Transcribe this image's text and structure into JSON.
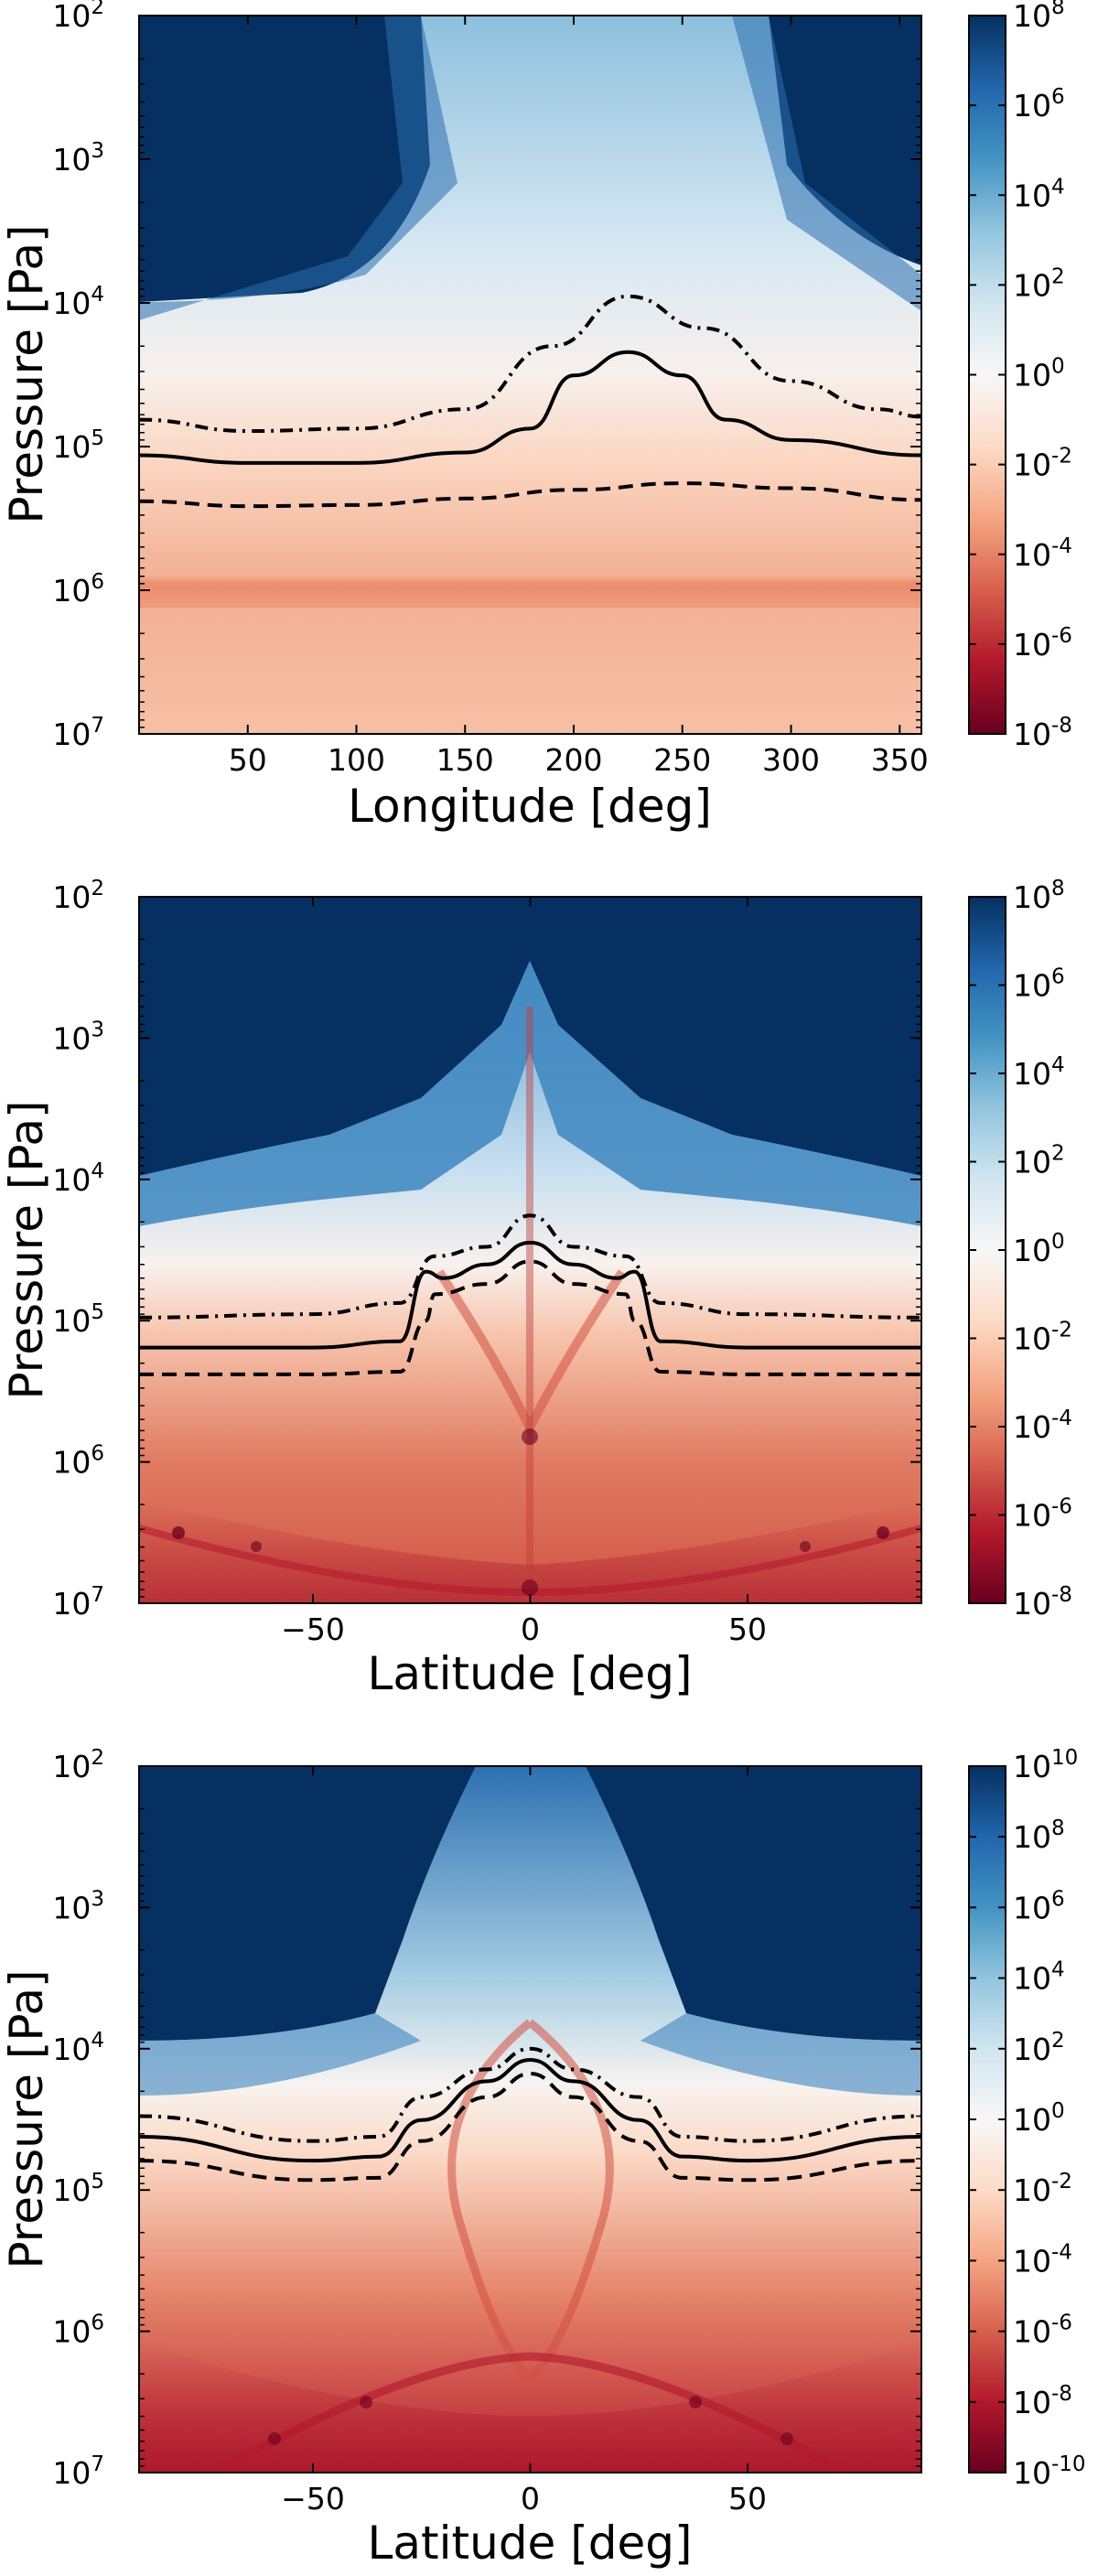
{
  "chart_data": [
    {
      "type": "heatmap",
      "panel": "top",
      "xlabel": "Longitude [deg]",
      "ylabel": "Pressure [Pa]",
      "xlim": [
        0,
        360
      ],
      "xticks": [
        50,
        100,
        150,
        200,
        250,
        300,
        350
      ],
      "ylim": [
        100,
        10000000
      ],
      "yscale": "log",
      "yinverted": true,
      "yticks": [
        {
          "base": "10",
          "exp": "2"
        },
        {
          "base": "10",
          "exp": "3"
        },
        {
          "base": "10",
          "exp": "4"
        },
        {
          "base": "10",
          "exp": "5"
        },
        {
          "base": "10",
          "exp": "6"
        },
        {
          "base": "10",
          "exp": "7"
        }
      ],
      "colorbar": {
        "scale": "log",
        "colormap": "RdBu",
        "range": [
          1e-08,
          100000000.0
        ],
        "ticks": [
          {
            "base": "10",
            "exp": "8"
          },
          {
            "base": "10",
            "exp": "6"
          },
          {
            "base": "10",
            "exp": "4"
          },
          {
            "base": "10",
            "exp": "2"
          },
          {
            "base": "10",
            "exp": "0"
          },
          {
            "base": "10",
            "exp": "-2"
          },
          {
            "base": "10",
            "exp": "-4"
          },
          {
            "base": "10",
            "exp": "-6"
          },
          {
            "base": "10",
            "exp": "-8"
          }
        ]
      },
      "contours": [
        {
          "style": "dashdot",
          "points": [
            [
              0,
              65000
            ],
            [
              50,
              78000
            ],
            [
              100,
              75000
            ],
            [
              150,
              55000
            ],
            [
              190,
              20000
            ],
            [
              225,
              9000
            ],
            [
              260,
              15000
            ],
            [
              300,
              35000
            ],
            [
              340,
              55000
            ],
            [
              360,
              62000
            ]
          ]
        },
        {
          "style": "solid",
          "points": [
            [
              0,
              115000
            ],
            [
              50,
              130000
            ],
            [
              100,
              130000
            ],
            [
              150,
              110000
            ],
            [
              180,
              75000
            ],
            [
              200,
              32000
            ],
            [
              225,
              22000
            ],
            [
              250,
              32000
            ],
            [
              270,
              65000
            ],
            [
              300,
              90000
            ],
            [
              360,
              115000
            ]
          ]
        },
        {
          "style": "dashed",
          "points": [
            [
              0,
              240000
            ],
            [
              50,
              260000
            ],
            [
              100,
              255000
            ],
            [
              150,
              230000
            ],
            [
              200,
              200000
            ],
            [
              250,
              180000
            ],
            [
              300,
              195000
            ],
            [
              360,
              235000
            ]
          ]
        }
      ]
    },
    {
      "type": "heatmap",
      "panel": "middle",
      "xlabel": "Latitude [deg]",
      "ylabel": "Pressure [Pa]",
      "xlim": [
        -90,
        90
      ],
      "xticks": [
        -50,
        0,
        50
      ],
      "xtick_labels": [
        "−50",
        "0",
        "50"
      ],
      "ylim": [
        100,
        10000000
      ],
      "yscale": "log",
      "yinverted": true,
      "yticks": [
        {
          "base": "10",
          "exp": "2"
        },
        {
          "base": "10",
          "exp": "3"
        },
        {
          "base": "10",
          "exp": "4"
        },
        {
          "base": "10",
          "exp": "5"
        },
        {
          "base": "10",
          "exp": "6"
        },
        {
          "base": "10",
          "exp": "7"
        }
      ],
      "colorbar": {
        "scale": "log",
        "colormap": "RdBu",
        "range": [
          1e-08,
          100000000.0
        ],
        "ticks": [
          {
            "base": "10",
            "exp": "8"
          },
          {
            "base": "10",
            "exp": "6"
          },
          {
            "base": "10",
            "exp": "4"
          },
          {
            "base": "10",
            "exp": "2"
          },
          {
            "base": "10",
            "exp": "0"
          },
          {
            "base": "10",
            "exp": "-2"
          },
          {
            "base": "10",
            "exp": "-4"
          },
          {
            "base": "10",
            "exp": "-6"
          },
          {
            "base": "10",
            "exp": "-8"
          }
        ]
      },
      "contours": [
        {
          "style": "dashdot",
          "points": [
            [
              -90,
              95000
            ],
            [
              -50,
              90000
            ],
            [
              -30,
              75000
            ],
            [
              -22,
              35000
            ],
            [
              -10,
              30000
            ],
            [
              0,
              18000
            ],
            [
              10,
              30000
            ],
            [
              22,
              35000
            ],
            [
              30,
              75000
            ],
            [
              50,
              90000
            ],
            [
              90,
              95000
            ]
          ]
        },
        {
          "style": "solid",
          "points": [
            [
              -90,
              155000
            ],
            [
              -50,
              155000
            ],
            [
              -30,
              140000
            ],
            [
              -24,
              45000
            ],
            [
              -20,
              50000
            ],
            [
              -10,
              40000
            ],
            [
              0,
              28000
            ],
            [
              10,
              40000
            ],
            [
              20,
              50000
            ],
            [
              24,
              45000
            ],
            [
              30,
              140000
            ],
            [
              50,
              155000
            ],
            [
              90,
              155000
            ]
          ]
        },
        {
          "style": "dashed",
          "points": [
            [
              -90,
              240000
            ],
            [
              -50,
              240000
            ],
            [
              -30,
              230000
            ],
            [
              -24,
              100000
            ],
            [
              -22,
              65000
            ],
            [
              -10,
              55000
            ],
            [
              0,
              38000
            ],
            [
              10,
              55000
            ],
            [
              22,
              65000
            ],
            [
              24,
              100000
            ],
            [
              30,
              230000
            ],
            [
              50,
              240000
            ],
            [
              90,
              240000
            ]
          ]
        }
      ]
    },
    {
      "type": "heatmap",
      "panel": "bottom",
      "xlabel": "Latitude [deg]",
      "ylabel": "Pressure [Pa]",
      "xlim": [
        -90,
        90
      ],
      "xticks": [
        -50,
        0,
        50
      ],
      "xtick_labels": [
        "−50",
        "0",
        "50"
      ],
      "ylim": [
        100,
        10000000
      ],
      "yscale": "log",
      "yinverted": true,
      "yticks": [
        {
          "base": "10",
          "exp": "2"
        },
        {
          "base": "10",
          "exp": "3"
        },
        {
          "base": "10",
          "exp": "4"
        },
        {
          "base": "10",
          "exp": "5"
        },
        {
          "base": "10",
          "exp": "6"
        },
        {
          "base": "10",
          "exp": "7"
        }
      ],
      "colorbar": {
        "scale": "log",
        "colormap": "RdBu",
        "range": [
          1e-10,
          10000000000.0
        ],
        "ticks": [
          {
            "base": "10",
            "exp": "10"
          },
          {
            "base": "10",
            "exp": "8"
          },
          {
            "base": "10",
            "exp": "6"
          },
          {
            "base": "10",
            "exp": "4"
          },
          {
            "base": "10",
            "exp": "2"
          },
          {
            "base": "10",
            "exp": "0"
          },
          {
            "base": "10",
            "exp": "-2"
          },
          {
            "base": "10",
            "exp": "-4"
          },
          {
            "base": "10",
            "exp": "-6"
          },
          {
            "base": "10",
            "exp": "-8"
          },
          {
            "base": "10",
            "exp": "-10"
          }
        ]
      },
      "contours": [
        {
          "style": "dashdot",
          "points": [
            [
              -90,
              30000
            ],
            [
              -50,
              45000
            ],
            [
              -35,
              42000
            ],
            [
              -25,
              22000
            ],
            [
              -10,
              14000
            ],
            [
              0,
              10000
            ],
            [
              10,
              14000
            ],
            [
              25,
              22000
            ],
            [
              35,
              42000
            ],
            [
              50,
              45000
            ],
            [
              90,
              30000
            ]
          ]
        },
        {
          "style": "solid",
          "points": [
            [
              -90,
              42000
            ],
            [
              -50,
              62000
            ],
            [
              -35,
              58000
            ],
            [
              -25,
              32000
            ],
            [
              -10,
              17000
            ],
            [
              0,
              12000
            ],
            [
              10,
              17000
            ],
            [
              25,
              32000
            ],
            [
              35,
              58000
            ],
            [
              50,
              62000
            ],
            [
              90,
              42000
            ]
          ]
        },
        {
          "style": "dashed",
          "points": [
            [
              -90,
              62000
            ],
            [
              -50,
              85000
            ],
            [
              -35,
              82000
            ],
            [
              -25,
              45000
            ],
            [
              -10,
              22000
            ],
            [
              0,
              15000
            ],
            [
              10,
              22000
            ],
            [
              25,
              45000
            ],
            [
              35,
              82000
            ],
            [
              50,
              85000
            ],
            [
              90,
              62000
            ]
          ]
        }
      ]
    }
  ]
}
